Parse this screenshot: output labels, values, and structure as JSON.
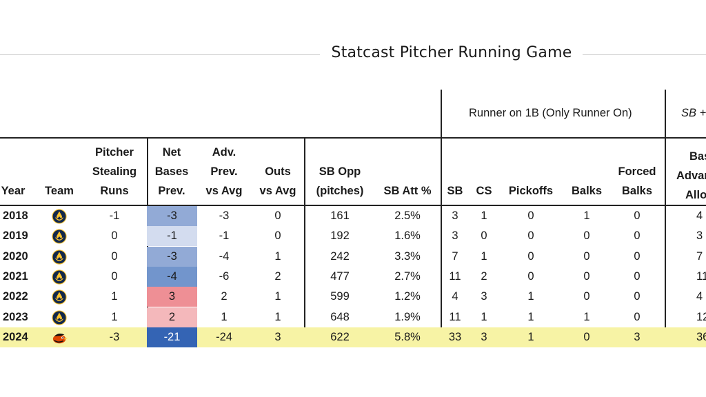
{
  "title": "Statcast Pitcher Running Game",
  "group_headers": {
    "runner_on_1b": "Runner on 1B (Only Runner On)",
    "sb_plus": "SB + "
  },
  "columns": {
    "year": "Year",
    "team": "Team",
    "pitcher_stealing_runs": [
      "Pitcher",
      "Stealing",
      "Runs"
    ],
    "net_bases_prev": [
      "Net",
      "Bases",
      "Prev."
    ],
    "adv_prev_vs_avg": [
      "Adv.",
      "Prev.",
      "vs Avg"
    ],
    "outs_vs_avg": [
      "Outs",
      "vs Avg"
    ],
    "sb_opp": [
      "SB Opp",
      "(pitches)"
    ],
    "sb_att_pct": "SB Att %",
    "sb": "SB",
    "cs": "CS",
    "pickoffs": "Pickoffs",
    "balks": "Balks",
    "forced_balks": [
      "Forced",
      "Balks"
    ],
    "bases_adv_allowed": [
      "Bas",
      "Advar",
      "Allow"
    ]
  },
  "rows": [
    {
      "year": "2018",
      "team_logo": "brewers-logo-icon",
      "psr": "-1",
      "net": "-3",
      "net_color": "#92aad6",
      "net_text_color": "#1a1a1a",
      "adv": "-3",
      "outs": "0",
      "sbopp": "161",
      "sbatt": "2.5%",
      "sb": "3",
      "cs": "1",
      "pick": "0",
      "balks": "1",
      "fbalks": "0",
      "basesadv": "4",
      "highlight": false
    },
    {
      "year": "2019",
      "team_logo": "brewers-logo-icon",
      "psr": "0",
      "net": "-1",
      "net_color": "#d3dcef",
      "net_text_color": "#1a1a1a",
      "adv": "-1",
      "outs": "0",
      "sbopp": "192",
      "sbatt": "1.6%",
      "sb": "3",
      "cs": "0",
      "pick": "0",
      "balks": "0",
      "fbalks": "0",
      "basesadv": "3",
      "highlight": false
    },
    {
      "year": "2020",
      "team_logo": "brewers-logo-icon",
      "psr": "0",
      "net": "-3",
      "net_color": "#92aad6",
      "net_text_color": "#1a1a1a",
      "adv": "-4",
      "outs": "1",
      "sbopp": "242",
      "sbatt": "3.3%",
      "sb": "7",
      "cs": "1",
      "pick": "0",
      "balks": "0",
      "fbalks": "0",
      "basesadv": "7",
      "highlight": false
    },
    {
      "year": "2021",
      "team_logo": "brewers-logo-icon",
      "psr": "0",
      "net": "-4",
      "net_color": "#7295cc",
      "net_text_color": "#1a1a1a",
      "adv": "-6",
      "outs": "2",
      "sbopp": "477",
      "sbatt": "2.7%",
      "sb": "11",
      "cs": "2",
      "pick": "0",
      "balks": "0",
      "fbalks": "0",
      "basesadv": "11",
      "highlight": false
    },
    {
      "year": "2022",
      "team_logo": "brewers-logo-icon",
      "psr": "1",
      "net": "3",
      "net_color": "#ee8f95",
      "net_text_color": "#1a1a1a",
      "adv": "2",
      "outs": "1",
      "sbopp": "599",
      "sbatt": "1.2%",
      "sb": "4",
      "cs": "3",
      "pick": "1",
      "balks": "0",
      "fbalks": "0",
      "basesadv": "4",
      "highlight": false
    },
    {
      "year": "2023",
      "team_logo": "brewers-logo-icon",
      "psr": "1",
      "net": "2",
      "net_color": "#f4b8bb",
      "net_text_color": "#1a1a1a",
      "adv": "1",
      "outs": "1",
      "sbopp": "648",
      "sbatt": "1.9%",
      "sb": "11",
      "cs": "1",
      "pick": "1",
      "balks": "1",
      "fbalks": "0",
      "basesadv": "12",
      "highlight": false
    },
    {
      "year": "2024",
      "team_logo": "orioles-logo-icon",
      "psr": "-3",
      "net": "-21",
      "net_color": "#3464b4",
      "net_text_color": "#ffffff",
      "adv": "-24",
      "outs": "3",
      "sbopp": "622",
      "sbatt": "5.8%",
      "sb": "33",
      "cs": "3",
      "pick": "1",
      "balks": "0",
      "fbalks": "3",
      "basesadv": "36",
      "highlight": true
    }
  ],
  "colors": {
    "brewers_navy": "#12284b",
    "brewers_gold": "#ffc52f",
    "orioles_orange": "#df4601",
    "highlight": "#f7f3a5"
  }
}
